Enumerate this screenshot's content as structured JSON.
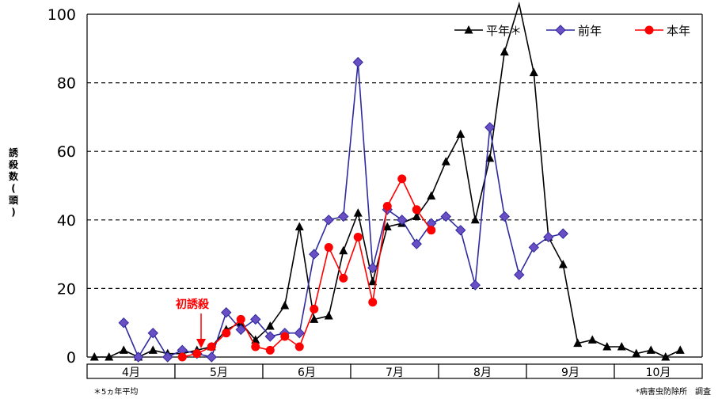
{
  "chart_data": {
    "type": "line",
    "title": "",
    "xlabel": "",
    "ylabel": "誘殺数(頭)",
    "ylim": [
      0,
      100
    ],
    "yticks": [
      0,
      20,
      40,
      60,
      80,
      100
    ],
    "grid": "dashed horizontal",
    "legend_position": "top-right",
    "months": [
      "4月",
      "5月",
      "6月",
      "7月",
      "8月",
      "9月",
      "10月"
    ],
    "period_index": [
      1,
      2,
      3,
      4,
      5,
      6,
      7,
      8,
      9,
      10,
      11,
      12,
      13,
      14,
      15,
      16,
      17,
      18,
      19,
      20,
      21,
      22,
      23,
      24,
      25,
      26,
      27,
      28,
      29,
      30,
      31,
      32,
      33,
      34,
      35,
      36,
      37,
      38,
      39,
      40,
      41,
      42
    ],
    "series": [
      {
        "name": "平年＊",
        "color": "#000000",
        "marker": "triangle",
        "values": [
          0,
          0,
          2,
          0,
          2,
          1,
          1,
          2,
          3,
          8,
          10,
          5,
          9,
          15,
          38,
          11,
          12,
          31,
          42,
          22,
          38,
          39,
          41,
          47,
          57,
          65,
          40,
          58,
          89,
          110,
          83,
          35,
          27,
          4,
          5,
          3,
          3,
          1,
          2,
          0,
          2,
          null
        ]
      },
      {
        "name": "前年",
        "color": "#2e2b9e",
        "marker": "diamond",
        "values": [
          null,
          null,
          10,
          0,
          7,
          0,
          2,
          1,
          0,
          13,
          8,
          11,
          6,
          7,
          7,
          30,
          40,
          41,
          86,
          26,
          43,
          40,
          33,
          39,
          41,
          37,
          21,
          67,
          41,
          24,
          32,
          35,
          36,
          null,
          null,
          null,
          null,
          null,
          null,
          null,
          null,
          null
        ]
      },
      {
        "name": "本年",
        "color": "#ff0000",
        "marker": "circle",
        "values": [
          null,
          null,
          null,
          null,
          null,
          null,
          0,
          1,
          3,
          7,
          11,
          3,
          2,
          6,
          3,
          14,
          32,
          23,
          35,
          16,
          44,
          52,
          43,
          37,
          null,
          null,
          null,
          null,
          null,
          null,
          null,
          null,
          null,
          null,
          null,
          null,
          null,
          null,
          null,
          null,
          null,
          null
        ]
      }
    ],
    "annotation": "初誘殺",
    "note_left": "＊5ヵ年平均",
    "note_right": "*病害虫防除所　調査"
  }
}
